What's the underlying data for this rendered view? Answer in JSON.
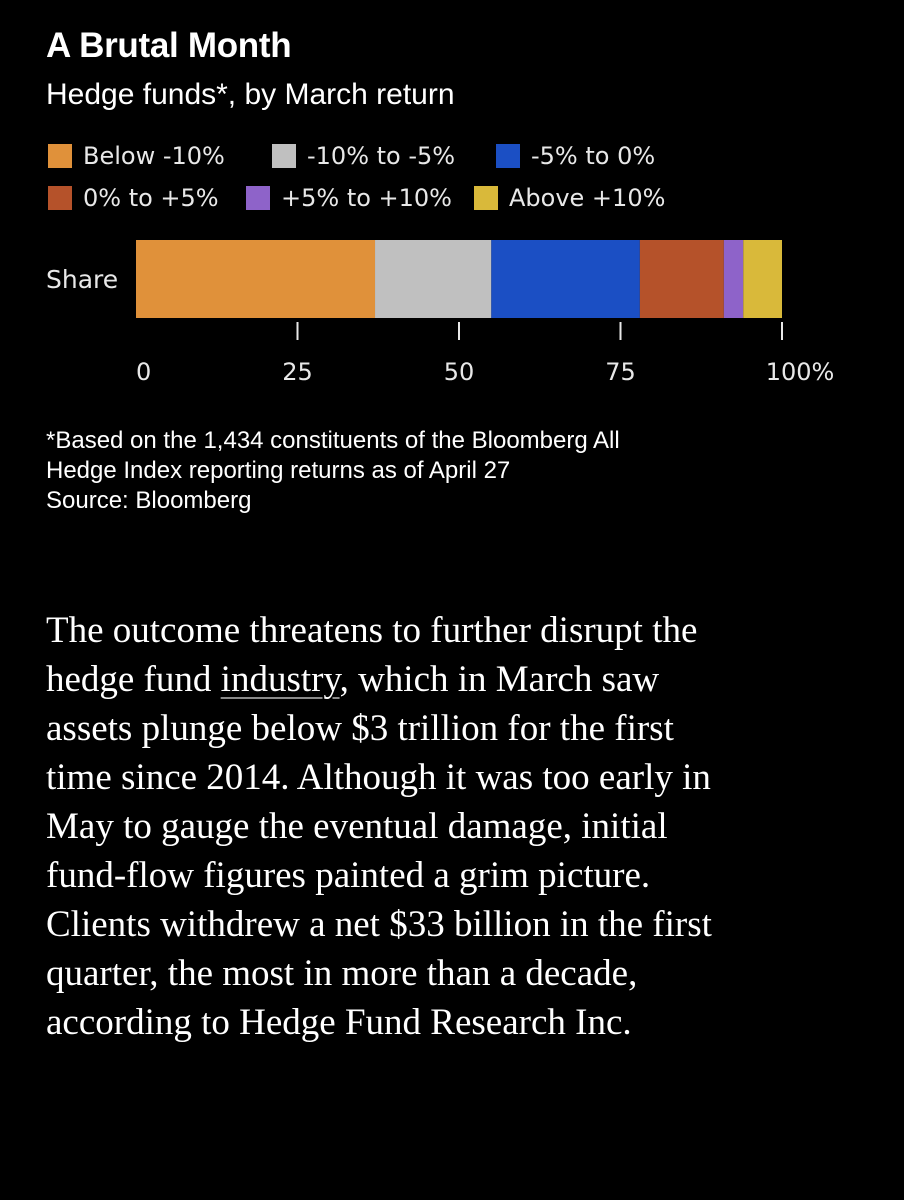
{
  "chart_data": {
    "type": "bar",
    "orientation": "horizontal-stacked",
    "title": "A Brutal Month",
    "subtitle": "Hedge funds*, by March return",
    "categories": [
      "Share"
    ],
    "series": [
      {
        "name": "Below -10%",
        "values": [
          37
        ],
        "color": "#E0913A"
      },
      {
        "name": "-10% to -5%",
        "values": [
          18
        ],
        "color": "#C0C0C0"
      },
      {
        "name": "-5% to 0%",
        "values": [
          23
        ],
        "color": "#1B4FC4"
      },
      {
        "name": "0% to +5%",
        "values": [
          13
        ],
        "color": "#B5522A"
      },
      {
        "name": "+5% to +10%",
        "values": [
          3
        ],
        "color": "#8E63C9"
      },
      {
        "name": "Above +10%",
        "values": [
          6
        ],
        "color": "#D9B93A"
      }
    ],
    "xlim": [
      0,
      100
    ],
    "xticks": [
      0,
      25,
      50,
      75,
      100
    ],
    "xtick_labels": [
      "0",
      "25",
      "50",
      "75",
      "100%"
    ],
    "xlabel": "",
    "ylabel": "",
    "grid": false,
    "legend_position": "top"
  },
  "footnote": {
    "lines": [
      "*Based on the 1,434 constituents of the Bloomberg All",
      "Hedge Index reporting returns as of April 27",
      "Source: Bloomberg"
    ]
  },
  "article": {
    "line1": "The outcome threatens to further disrupt the",
    "line2_before": "hedge fund ",
    "line2_link": "industry",
    "line2_after": ", which in March saw",
    "line3": "assets plunge below $3 trillion for the first",
    "line4": "time since 2014. Although it was too early in",
    "line5": "May to gauge the eventual damage, initial",
    "line6": "fund-flow figures painted a grim picture.",
    "line7": "Clients withdrew a net $33 billion in the first",
    "line8": "quarter, the most in more than a decade,",
    "line9": "according to Hedge Fund Research Inc."
  },
  "colors": {
    "background": "#000000",
    "text": "#FFFFFF",
    "axis": "#E8E8E8"
  }
}
